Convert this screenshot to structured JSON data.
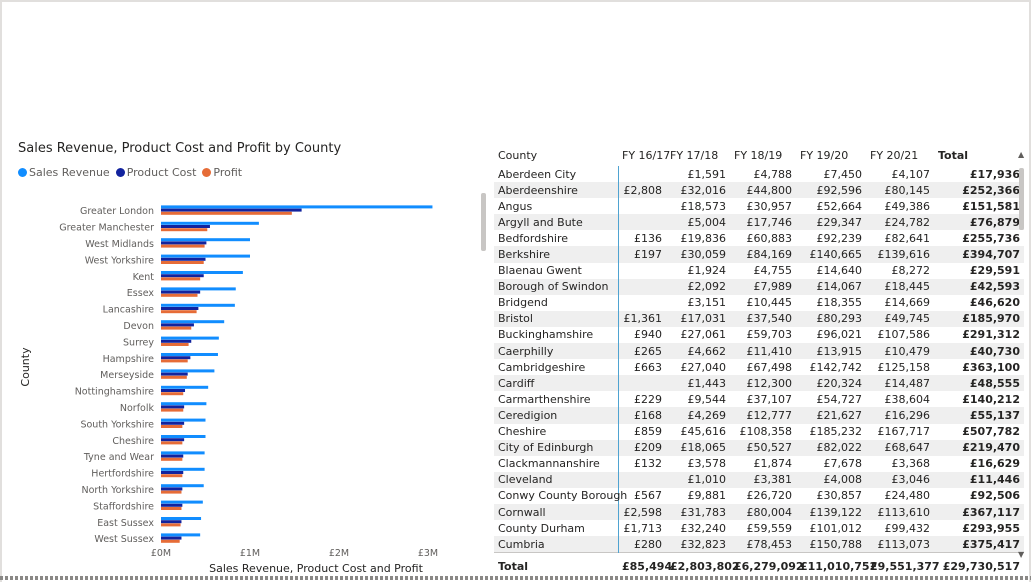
{
  "colors": {
    "sales_revenue": "#118dff",
    "product_cost": "#12239e",
    "profit": "#e66c37"
  },
  "chart": {
    "title": "Sales Revenue, Product Cost and Profit by County",
    "legend": [
      "Sales Revenue",
      "Product Cost",
      "Profit"
    ]
  },
  "chart_data": {
    "type": "bar",
    "orientation": "horizontal",
    "title": "Sales Revenue, Product Cost and Profit by County",
    "xlabel": "Sales Revenue, Product Cost and Profit",
    "ylabel": "County",
    "xlim": [
      0,
      3000000
    ],
    "xticks": [
      "£0M",
      "£1M",
      "£2M",
      "£3M"
    ],
    "xtick_values": [
      0,
      1000000,
      2000000,
      3000000
    ],
    "categories": [
      "Greater London",
      "Greater Manchester",
      "West Midlands",
      "West Yorkshire",
      "Kent",
      "Essex",
      "Lancashire",
      "Devon",
      "Surrey",
      "Hampshire",
      "Merseyside",
      "Nottinghamshire",
      "Norfolk",
      "South Yorkshire",
      "Cheshire",
      "Tyne and Wear",
      "Hertfordshire",
      "North Yorkshire",
      "Staffordshire",
      "East Sussex",
      "West Sussex"
    ],
    "series": [
      {
        "name": "Sales Revenue",
        "values": [
          3050000,
          1100000,
          1000000,
          1000000,
          920000,
          840000,
          830000,
          710000,
          650000,
          640000,
          600000,
          530000,
          510000,
          500000,
          500000,
          490000,
          490000,
          480000,
          470000,
          450000,
          440000
        ]
      },
      {
        "name": "Product Cost",
        "values": [
          1580000,
          550000,
          510000,
          500000,
          480000,
          440000,
          420000,
          370000,
          340000,
          330000,
          300000,
          270000,
          260000,
          260000,
          260000,
          250000,
          250000,
          240000,
          240000,
          230000,
          230000
        ]
      },
      {
        "name": "Profit",
        "values": [
          1470000,
          520000,
          490000,
          480000,
          440000,
          410000,
          400000,
          340000,
          310000,
          300000,
          290000,
          250000,
          250000,
          240000,
          240000,
          240000,
          240000,
          230000,
          230000,
          220000,
          210000
        ]
      }
    ]
  },
  "table": {
    "headers": [
      "County",
      "FY 16/17",
      "FY 17/18",
      "FY 18/19",
      "FY 19/20",
      "FY 20/21",
      "Total"
    ],
    "rows": [
      [
        "Aberdeen City",
        "",
        "£1,591",
        "£4,788",
        "£7,450",
        "£4,107",
        "£17,936"
      ],
      [
        "Aberdeenshire",
        "£2,808",
        "£32,016",
        "£44,800",
        "£92,596",
        "£80,145",
        "£252,366"
      ],
      [
        "Angus",
        "",
        "£18,573",
        "£30,957",
        "£52,664",
        "£49,386",
        "£151,581"
      ],
      [
        "Argyll and Bute",
        "",
        "£5,004",
        "£17,746",
        "£29,347",
        "£24,782",
        "£76,879"
      ],
      [
        "Bedfordshire",
        "£136",
        "£19,836",
        "£60,883",
        "£92,239",
        "£82,641",
        "£255,736"
      ],
      [
        "Berkshire",
        "£197",
        "£30,059",
        "£84,169",
        "£140,665",
        "£139,616",
        "£394,707"
      ],
      [
        "Blaenau Gwent",
        "",
        "£1,924",
        "£4,755",
        "£14,640",
        "£8,272",
        "£29,591"
      ],
      [
        "Borough of Swindon",
        "",
        "£2,092",
        "£7,989",
        "£14,067",
        "£18,445",
        "£42,593"
      ],
      [
        "Bridgend",
        "",
        "£3,151",
        "£10,445",
        "£18,355",
        "£14,669",
        "£46,620"
      ],
      [
        "Bristol",
        "£1,361",
        "£17,031",
        "£37,540",
        "£80,293",
        "£49,745",
        "£185,970"
      ],
      [
        "Buckinghamshire",
        "£940",
        "£27,061",
        "£59,703",
        "£96,021",
        "£107,586",
        "£291,312"
      ],
      [
        "Caerphilly",
        "£265",
        "£4,662",
        "£11,410",
        "£13,915",
        "£10,479",
        "£40,730"
      ],
      [
        "Cambridgeshire",
        "£663",
        "£27,040",
        "£67,498",
        "£142,742",
        "£125,158",
        "£363,100"
      ],
      [
        "Cardiff",
        "",
        "£1,443",
        "£12,300",
        "£20,324",
        "£14,487",
        "£48,555"
      ],
      [
        "Carmarthenshire",
        "£229",
        "£9,544",
        "£37,107",
        "£54,727",
        "£38,604",
        "£140,212"
      ],
      [
        "Ceredigion",
        "£168",
        "£4,269",
        "£12,777",
        "£21,627",
        "£16,296",
        "£55,137"
      ],
      [
        "Cheshire",
        "£859",
        "£45,616",
        "£108,358",
        "£185,232",
        "£167,717",
        "£507,782"
      ],
      [
        "City of Edinburgh",
        "£209",
        "£18,065",
        "£50,527",
        "£82,022",
        "£68,647",
        "£219,470"
      ],
      [
        "Clackmannanshire",
        "£132",
        "£3,578",
        "£1,874",
        "£7,678",
        "£3,368",
        "£16,629"
      ],
      [
        "Cleveland",
        "",
        "£1,010",
        "£3,381",
        "£4,008",
        "£3,046",
        "£11,446"
      ],
      [
        "Conwy County Borough",
        "£567",
        "£9,881",
        "£26,720",
        "£30,857",
        "£24,480",
        "£92,506"
      ],
      [
        "Cornwall",
        "£2,598",
        "£31,783",
        "£80,004",
        "£139,122",
        "£113,610",
        "£367,117"
      ],
      [
        "County Durham",
        "£1,713",
        "£32,240",
        "£59,559",
        "£101,012",
        "£99,432",
        "£293,955"
      ],
      [
        "Cumbria",
        "£280",
        "£32,823",
        "£78,453",
        "£150,788",
        "£113,073",
        "£375,417"
      ]
    ],
    "total": [
      "Total",
      "£85,494",
      "£2,803,802",
      "£6,279,092",
      "£11,010,752",
      "£9,551,377",
      "£29,730,517"
    ]
  }
}
